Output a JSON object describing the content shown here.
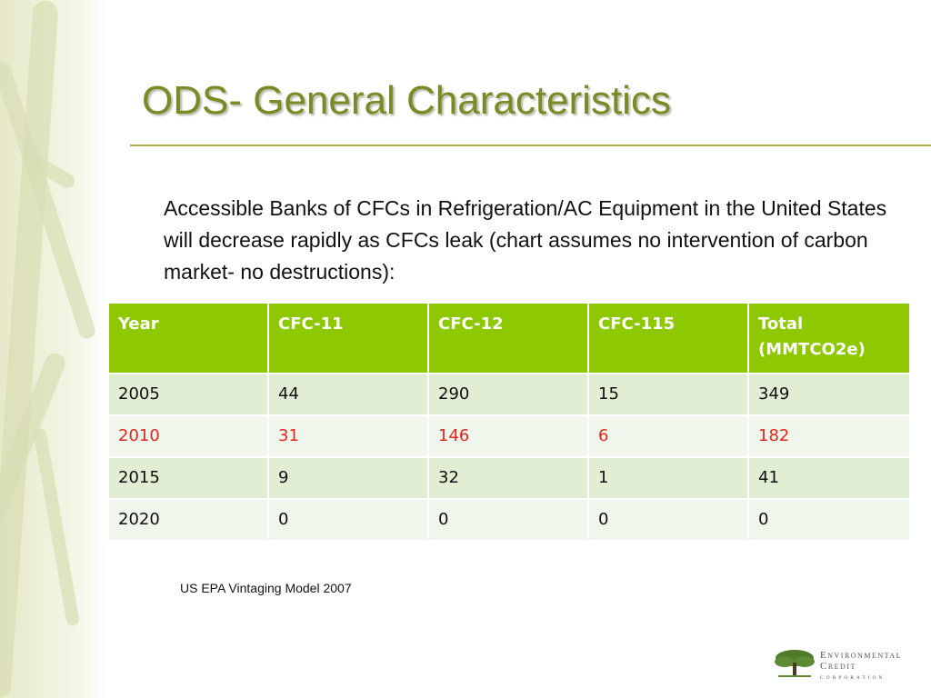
{
  "slide": {
    "title": "ODS- General Characteristics",
    "intro": "Accessible Banks of CFCs in Refrigeration/AC Equipment in the United States will decrease rapidly as CFCs leak (chart assumes no intervention of carbon market- no destructions):",
    "source": "US EPA Vintaging Model 2007"
  },
  "table": {
    "headers": [
      "Year",
      "CFC-11",
      "CFC-12",
      "CFC-115",
      "Total (MMTCO2e)"
    ],
    "rows": [
      [
        "2005",
        "44",
        "290",
        "15",
        "349"
      ],
      [
        "2010",
        "31",
        "146",
        "6",
        "182"
      ],
      [
        "2015",
        "9",
        "32",
        "1",
        "41"
      ],
      [
        "2020",
        "0",
        "0",
        "0",
        "0"
      ]
    ],
    "header_color": "#8dc800",
    "highlight_color": "#e3261c"
  },
  "logo": {
    "line1": "Environmental",
    "line2": "Credit",
    "line3": "CORPORATION"
  }
}
